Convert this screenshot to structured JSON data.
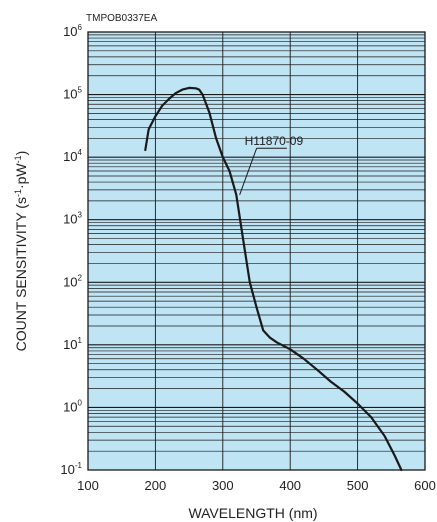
{
  "chart_data": {
    "type": "line",
    "code": "TMPOB0337EA",
    "xlabel": "WAVELENGTH (nm)",
    "ylabel": {
      "main": "COUNT SENSITIVITY (s",
      "sup1": "-1",
      "mid": "·pW",
      "sup2": "-1",
      "end": ")"
    },
    "xlim": [
      100,
      600
    ],
    "ylim": [
      0.1,
      1000000
    ],
    "yscale": "log",
    "grid": true,
    "background_color": "#bfe4f4",
    "grid_color": "#1a1a1a",
    "line_color": "#1a1a1a",
    "x_ticks": [
      "100",
      "200",
      "300",
      "400",
      "500",
      "600"
    ],
    "y_ticks": [
      {
        "base": "10",
        "exp": "-1"
      },
      {
        "base": "10",
        "exp": "0"
      },
      {
        "base": "10",
        "exp": "1"
      },
      {
        "base": "10",
        "exp": "2"
      },
      {
        "base": "10",
        "exp": "3"
      },
      {
        "base": "10",
        "exp": "4"
      },
      {
        "base": "10",
        "exp": "5"
      },
      {
        "base": "10",
        "exp": "6"
      }
    ],
    "series": [
      {
        "name": "H11870-09",
        "points": [
          [
            185,
            13000
          ],
          [
            190,
            28000
          ],
          [
            200,
            45000
          ],
          [
            210,
            66000
          ],
          [
            220,
            85000
          ],
          [
            230,
            105000
          ],
          [
            240,
            120000
          ],
          [
            250,
            128000
          ],
          [
            260,
            126000
          ],
          [
            265,
            120000
          ],
          [
            270,
            100000
          ],
          [
            280,
            52000
          ],
          [
            290,
            20000
          ],
          [
            300,
            10000
          ],
          [
            310,
            6000
          ],
          [
            320,
            2500
          ],
          [
            330,
            500
          ],
          [
            340,
            100
          ],
          [
            350,
            40
          ],
          [
            360,
            17
          ],
          [
            370,
            13
          ],
          [
            380,
            11
          ],
          [
            400,
            8.5
          ],
          [
            420,
            6
          ],
          [
            440,
            4
          ],
          [
            460,
            2.6
          ],
          [
            480,
            1.8
          ],
          [
            500,
            1.15
          ],
          [
            520,
            0.7
          ],
          [
            540,
            0.35
          ],
          [
            555,
            0.17
          ],
          [
            565,
            0.1
          ]
        ]
      }
    ],
    "annotations": [
      {
        "text": "H11870-09",
        "target": [
          325,
          2500
        ],
        "label_at": [
          395,
          12000
        ]
      }
    ]
  }
}
